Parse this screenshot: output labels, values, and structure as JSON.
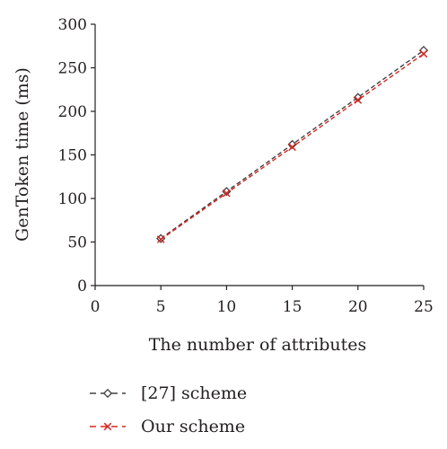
{
  "chart_data": {
    "type": "line",
    "xlabel": "The number of attributes",
    "ylabel": "GenToken time (ms)",
    "xlim": [
      0,
      25
    ],
    "ylim": [
      0,
      300
    ],
    "xticks": [
      "0",
      "5",
      "10",
      "15",
      "20",
      "25"
    ],
    "yticks": [
      "0",
      "50",
      "100",
      "150",
      "200",
      "250",
      "300"
    ],
    "grid": false,
    "legend_position": "bottom",
    "x": [
      5,
      10,
      15,
      20,
      25
    ],
    "series": [
      {
        "name": "[27] scheme",
        "values": [
          54,
          108,
          162,
          216,
          270
        ],
        "color": "#404040",
        "marker": "diamond",
        "dash": "dashed"
      },
      {
        "name": "Our scheme",
        "values": [
          53,
          106,
          159,
          213,
          266
        ],
        "color": "#d7261e",
        "marker": "x",
        "dash": "dashed"
      }
    ]
  }
}
